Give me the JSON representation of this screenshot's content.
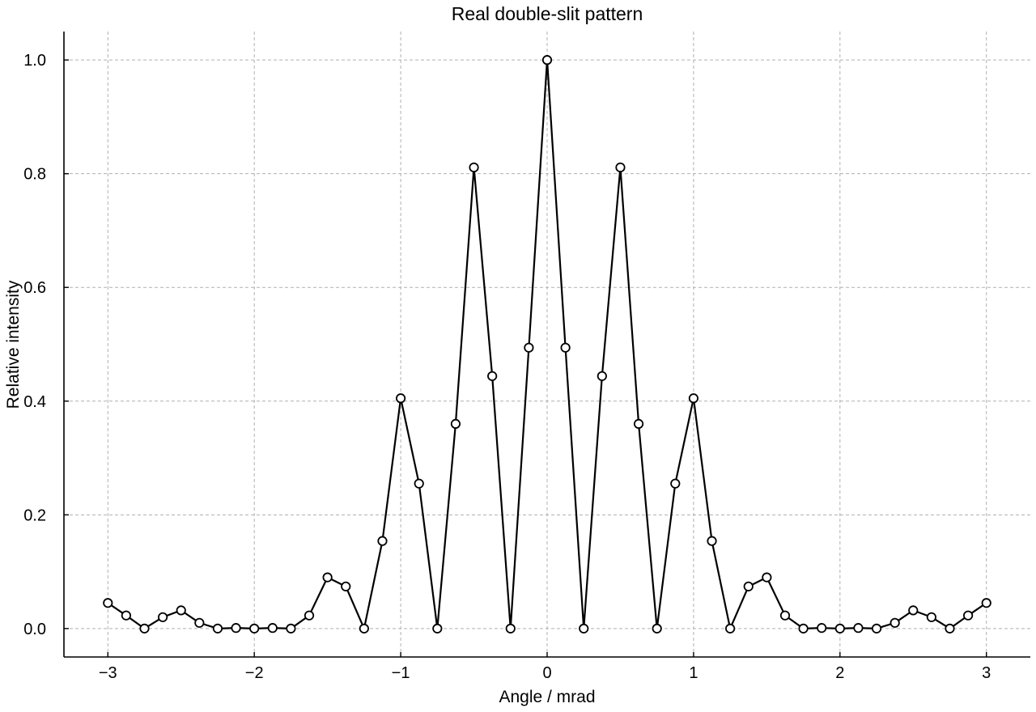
{
  "chart_data": {
    "type": "line",
    "title": "Real double-slit pattern",
    "xlabel": "Angle / mrad",
    "ylabel": "Relative intensity",
    "xlim": [
      -3.3,
      3.3
    ],
    "ylim": [
      -0.05,
      1.05
    ],
    "xticks": [
      -3,
      -2,
      -1,
      0,
      1,
      2,
      3
    ],
    "xtick_labels": [
      "−3",
      "−2",
      "−1",
      "0",
      "1",
      "2",
      "3"
    ],
    "yticks": [
      0.0,
      0.2,
      0.4,
      0.6,
      0.8,
      1.0
    ],
    "ytick_labels": [
      "0.0",
      "0.2",
      "0.4",
      "0.6",
      "0.8",
      "1.0"
    ],
    "grid": true,
    "line_color": "#000000",
    "marker": "open-circle",
    "x": [
      -3,
      -2.875,
      -2.75,
      -2.625,
      -2.5,
      -2.375,
      -2.25,
      -2.125,
      -2,
      -1.875,
      -1.75,
      -1.625,
      -1.5,
      -1.375,
      -1.25,
      -1.125,
      -1,
      -0.875,
      -0.75,
      -0.625,
      -0.5,
      -0.375,
      -0.25,
      -0.125,
      0,
      0.125,
      0.25,
      0.375,
      0.5,
      0.625,
      0.75,
      0.875,
      1,
      1.125,
      1.25,
      1.375,
      1.5,
      1.625,
      1.75,
      1.875,
      2,
      2.125,
      2.25,
      2.375,
      2.5,
      2.625,
      2.75,
      2.875,
      3
    ],
    "y": [
      0.045,
      0.023,
      0,
      0.02,
      0.032,
      0.01,
      0,
      0.001,
      0,
      0.001,
      0,
      0.023,
      0.09,
      0.074,
      0,
      0.154,
      0.405,
      0.255,
      0,
      0.36,
      0.811,
      0.444,
      0,
      0.494,
      1.0,
      0.494,
      0,
      0.444,
      0.811,
      0.36,
      0,
      0.255,
      0.405,
      0.154,
      0,
      0.074,
      0.09,
      0.023,
      0,
      0.001,
      0,
      0.001,
      0,
      0.01,
      0.032,
      0.02,
      0,
      0.023,
      0.045
    ]
  }
}
